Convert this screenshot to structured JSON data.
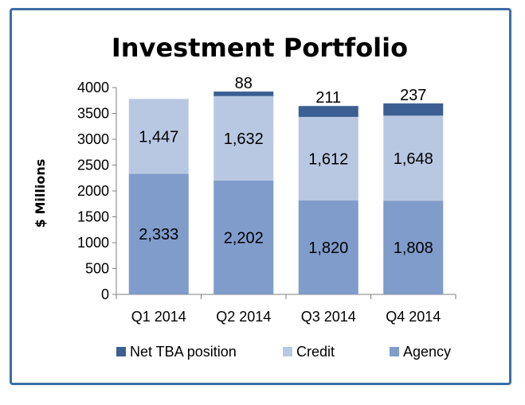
{
  "chart_data": {
    "type": "bar",
    "stacked": true,
    "title": "Investment Portfolio",
    "xlabel": "",
    "ylabel": "$ Millions",
    "ylim": [
      0,
      4000
    ],
    "yticks": [
      "0",
      "500",
      "1000",
      "1500",
      "2000",
      "2500",
      "3000",
      "3500",
      "4000"
    ],
    "categories": [
      "Q1 2014",
      "Q2 2014",
      "Q3 2014",
      "Q4 2014"
    ],
    "series": [
      {
        "name": "Agency",
        "color": "#7f9ccb",
        "values": [
          2333,
          2202,
          1820,
          1808
        ],
        "labels": [
          "2,333",
          "2,202",
          "1,820",
          "1,808"
        ]
      },
      {
        "name": "Credit",
        "color": "#b9c8e2",
        "values": [
          1447,
          1632,
          1612,
          1648
        ],
        "labels": [
          "1,447",
          "1,632",
          "1,612",
          "1,648"
        ]
      },
      {
        "name": "Net TBA position",
        "color": "#3b5f92",
        "values": [
          0,
          88,
          211,
          237
        ],
        "labels": [
          "",
          "88",
          "211",
          "237"
        ]
      }
    ],
    "legend_order": [
      "Net TBA position",
      "Credit",
      "Agency"
    ],
    "legend_position": "bottom",
    "grid": false
  }
}
